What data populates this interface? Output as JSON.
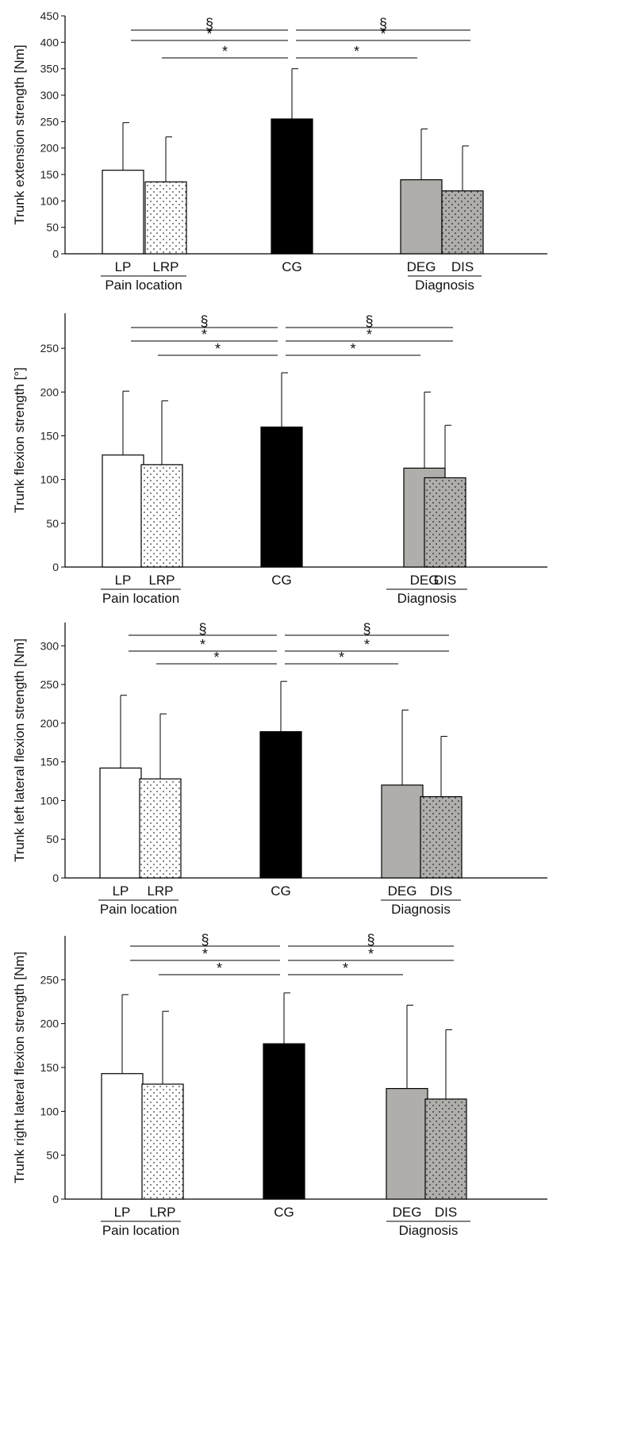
{
  "chart_data": [
    {
      "type": "bar",
      "categories": [
        "LP",
        "LRP",
        "CG",
        "DEG",
        "DIS"
      ],
      "values": [
        158,
        136,
        255,
        140,
        119
      ],
      "errors": [
        248,
        221,
        350,
        236,
        204
      ],
      "ylabel": "Trunk extension strength [Nm]",
      "yticks": [
        0,
        50,
        100,
        150,
        200,
        250,
        300,
        350,
        400,
        450
      ],
      "ylim": [
        0,
        450
      ],
      "group_labels": [
        "Pain location",
        "Diagnosis"
      ],
      "sig_lines": [
        {
          "symbol": "§",
          "from": "LP",
          "to": "CG"
        },
        {
          "symbol": "*",
          "from": "LP",
          "to": "CG"
        },
        {
          "symbol": "*",
          "from": "LRP",
          "to": "CG"
        },
        {
          "symbol": "§",
          "from": "CG",
          "to": "DIS"
        },
        {
          "symbol": "*",
          "from": "CG",
          "to": "DIS"
        },
        {
          "symbol": "*",
          "from": "CG",
          "to": "DEG"
        }
      ]
    },
    {
      "type": "bar",
      "categories": [
        "LP",
        "LRP",
        "CG",
        "DEG",
        "DIS"
      ],
      "values": [
        128,
        117,
        160,
        113,
        102
      ],
      "errors": [
        201,
        190,
        222,
        200,
        162
      ],
      "ylabel": "Trunk flexion strength [°]",
      "yticks": [
        0,
        50,
        100,
        150,
        200,
        250
      ],
      "ylim": [
        0,
        290
      ],
      "group_labels": [
        "Pain location",
        "Diagnosis"
      ],
      "sig_lines": [
        {
          "symbol": "§",
          "from": "LP",
          "to": "CG"
        },
        {
          "symbol": "*",
          "from": "LP",
          "to": "CG"
        },
        {
          "symbol": "*",
          "from": "LRP",
          "to": "CG"
        },
        {
          "symbol": "§",
          "from": "CG",
          "to": "DIS"
        },
        {
          "symbol": "*",
          "from": "CG",
          "to": "DIS"
        },
        {
          "symbol": "*",
          "from": "CG",
          "to": "DEG"
        }
      ]
    },
    {
      "type": "bar",
      "categories": [
        "LP",
        "LRP",
        "CG",
        "DEG",
        "DIS"
      ],
      "values": [
        142,
        128,
        189,
        120,
        105
      ],
      "errors": [
        236,
        212,
        254,
        217,
        183
      ],
      "ylabel": "Trunk left lateral flexion strength [Nm]",
      "yticks": [
        0,
        50,
        100,
        150,
        200,
        250,
        300
      ],
      "ylim": [
        0,
        330
      ],
      "group_labels": [
        "Pain location",
        "Diagnosis"
      ],
      "sig_lines": [
        {
          "symbol": "§",
          "from": "LP",
          "to": "CG"
        },
        {
          "symbol": "*",
          "from": "LP",
          "to": "CG"
        },
        {
          "symbol": "*",
          "from": "LRP",
          "to": "CG"
        },
        {
          "symbol": "§",
          "from": "CG",
          "to": "DIS"
        },
        {
          "symbol": "*",
          "from": "CG",
          "to": "DIS"
        },
        {
          "symbol": "*",
          "from": "CG",
          "to": "DEG"
        }
      ]
    },
    {
      "type": "bar",
      "categories": [
        "LP",
        "LRP",
        "CG",
        "DEG",
        "DIS"
      ],
      "values": [
        143,
        131,
        177,
        126,
        114
      ],
      "errors": [
        233,
        214,
        235,
        221,
        193
      ],
      "ylabel": "Trunk right lateral flexion strength [Nm]",
      "yticks": [
        0,
        50,
        100,
        150,
        200,
        250
      ],
      "ylim": [
        0,
        300
      ],
      "group_labels": [
        "Pain location",
        "Diagnosis"
      ],
      "sig_lines": [
        {
          "symbol": "§",
          "from": "LP",
          "to": "CG"
        },
        {
          "symbol": "*",
          "from": "LP",
          "to": "CG"
        },
        {
          "symbol": "*",
          "from": "LRP",
          "to": "CG"
        },
        {
          "symbol": "§",
          "from": "CG",
          "to": "DIS"
        },
        {
          "symbol": "*",
          "from": "CG",
          "to": "DIS"
        },
        {
          "symbol": "*",
          "from": "CG",
          "to": "DEG"
        }
      ]
    }
  ],
  "colors": {
    "LP": "#ffffff",
    "LRP": "#ffffff",
    "CG": "#000000",
    "DEG": "#b0aeab",
    "DIS": "#b0aeab",
    "axis": "#000000"
  }
}
